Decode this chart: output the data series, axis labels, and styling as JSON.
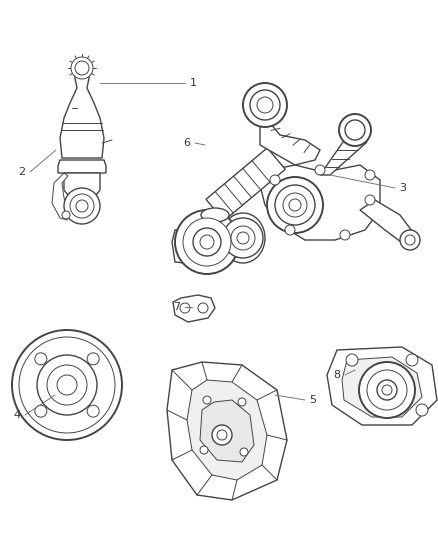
{
  "bg_color": "#ffffff",
  "line_color": "#444444",
  "label_color": "#333333",
  "leader_color": "#777777",
  "fig_width": 4.38,
  "fig_height": 5.33,
  "dpi": 100
}
